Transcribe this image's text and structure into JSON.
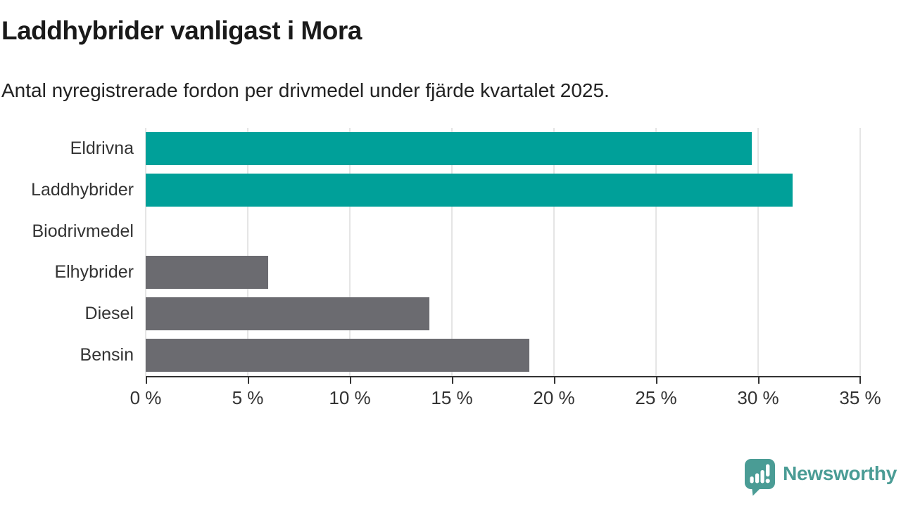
{
  "title": "Laddhybrider vanligast i Mora",
  "subtitle": "Antal nyregistrerade fordon per drivmedel under fjärde kvartalet 2025.",
  "chart_data": {
    "type": "bar",
    "orientation": "horizontal",
    "title": "Laddhybrider vanligast i Mora",
    "subtitle": "Antal nyregistrerade fordon per drivmedel under fjärde kvartalet 2025.",
    "categories": [
      "Eldrivna",
      "Laddhybrider",
      "Biodrivmedel",
      "Elhybrider",
      "Diesel",
      "Bensin"
    ],
    "values": [
      29.7,
      31.7,
      0,
      6.0,
      13.9,
      18.8
    ],
    "unit": "%",
    "xlabel": "",
    "ylabel": "",
    "xlim": [
      0,
      35
    ],
    "x_tick_step": 5,
    "x_tick_labels": [
      "0 %",
      "5 %",
      "10 %",
      "15 %",
      "20 %",
      "25 %",
      "30 %",
      "35 %"
    ],
    "grid": true,
    "legend": "none",
    "bar_colors": [
      "#00a099",
      "#00a099",
      "#6b6b70",
      "#6b6b70",
      "#6b6b70",
      "#6b6b70"
    ]
  },
  "colors": {
    "background": "#ffffff",
    "title_text": "#1a1a1a",
    "subtitle_text": "#222222",
    "axis_text": "#333333",
    "axis_line": "#333333",
    "gridline": "#e5e5e5",
    "highlight_bar": "#00a099",
    "default_bar": "#6b6b70",
    "logo": "#4a9c95"
  },
  "branding": {
    "logo_text": "Newsworthy",
    "logo_icon": "speech-bubble-bar-chart-icon"
  }
}
